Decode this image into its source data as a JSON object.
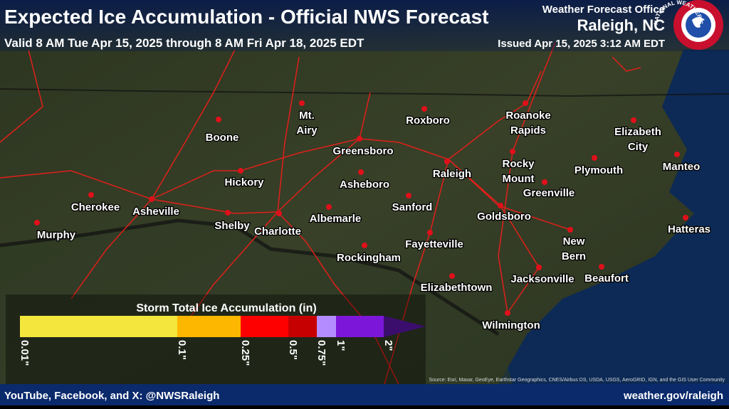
{
  "header": {
    "title": "Expected Ice Accumulation - Official NWS Forecast",
    "valid": "Valid 8 AM Tue Apr 15, 2025 through 8 AM Fri Apr 18, 2025 EDT",
    "office": "Weather Forecast Office",
    "office_city": "Raleigh, NC",
    "issued": "Issued Apr 15, 2025 3:12 AM EDT",
    "logo_text": "NATIONAL WEATHER SERVICE"
  },
  "cities": [
    {
      "label": [
        "Mt.",
        "Airy"
      ]
    },
    {
      "label": [
        "Boone"
      ]
    },
    {
      "label": [
        "Roxboro"
      ]
    },
    {
      "label": [
        "Roanoke",
        "Rapids"
      ]
    },
    {
      "label": [
        "Elizabeth",
        "City"
      ]
    },
    {
      "label": [
        "Greensboro"
      ]
    },
    {
      "label": [
        "Rocky",
        "Mount"
      ]
    },
    {
      "label": [
        "Plymouth"
      ]
    },
    {
      "label": [
        "Manteo"
      ]
    },
    {
      "label": [
        "Hickory"
      ]
    },
    {
      "label": [
        "Raleigh"
      ]
    },
    {
      "label": [
        "Asheboro"
      ]
    },
    {
      "label": [
        "Greenville"
      ]
    },
    {
      "label": [
        "Cherokee"
      ]
    },
    {
      "label": [
        "Asheville"
      ]
    },
    {
      "label": [
        "Sanford"
      ]
    },
    {
      "label": [
        "Goldsboro"
      ]
    },
    {
      "label": [
        "Shelby"
      ]
    },
    {
      "label": [
        "Charlotte"
      ]
    },
    {
      "label": [
        "Albemarle"
      ]
    },
    {
      "label": [
        "Murphy"
      ]
    },
    {
      "label": [
        "Hatteras"
      ]
    },
    {
      "label": [
        "New",
        "Bern"
      ]
    },
    {
      "label": [
        "Fayetteville"
      ]
    },
    {
      "label": [
        "Rockingham"
      ]
    },
    {
      "label": [
        "Jacksonville"
      ]
    },
    {
      "label": [
        "Beaufort"
      ]
    },
    {
      "label": [
        "Elizabethtown"
      ]
    },
    {
      "label": [
        "Wilmington"
      ]
    }
  ],
  "legend": {
    "title": "Storm Total Ice Accumulation (in)",
    "ticks": [
      "0.01\"",
      "0.1\"",
      "0.25\"",
      "0.5\"",
      "0.75\"",
      "1\"",
      "2\""
    ],
    "colors": [
      "#f4e63c",
      "#fdb700",
      "#fe0000",
      "#c60000",
      "#b58cff",
      "#7c16d8",
      "#3b0e6e"
    ]
  },
  "source": "Source: Esri, Maxar, GeoEye, Earthstar Geographics, CNES/Airbus DS, USDA, USGS, AeroGRID, IGN, and the GIS User Community",
  "footer": {
    "social": "YouTube, Facebook, and X: @NWSRaleigh",
    "website": "weather.gov/raleigh"
  }
}
